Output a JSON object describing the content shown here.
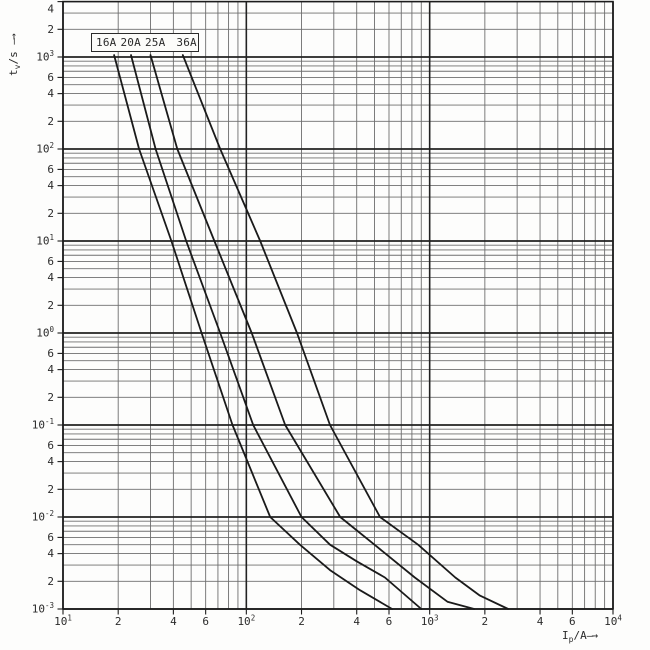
{
  "palette": {
    "background": "#fdfdfc",
    "grid_minor": "#6e6e6e",
    "grid_major": "#222222",
    "border": "#1c1c1c",
    "curve": "#1a1a1a",
    "text": "#2b2b2b"
  },
  "chart_data": {
    "type": "line",
    "x_scale": "log",
    "y_scale": "log",
    "xlim": [
      10,
      10000
    ],
    "ylim": [
      0.001,
      4000
    ],
    "grid": "log major+minor, on",
    "legend_position": "top-left framed box",
    "xlabel": "Ip/A",
    "ylabel": "tv/s",
    "xlabel_parts": {
      "symbol": "I",
      "sub": "p",
      "unit": "/A",
      "arrow": "—→"
    },
    "ylabel_parts": {
      "symbol": "t",
      "sub": "v",
      "unit": "/s",
      "arrow": "—→"
    },
    "x_ticks": [
      {
        "v": 10,
        "base": "10",
        "exp": "1"
      },
      {
        "v": 20,
        "text": "2"
      },
      {
        "v": 40,
        "text": "4"
      },
      {
        "v": 60,
        "text": "6"
      },
      {
        "v": 100,
        "base": "10",
        "exp": "2"
      },
      {
        "v": 200,
        "text": "2"
      },
      {
        "v": 400,
        "text": "4"
      },
      {
        "v": 600,
        "text": "6"
      },
      {
        "v": 1000,
        "base": "10",
        "exp": "3"
      },
      {
        "v": 2000,
        "text": "2"
      },
      {
        "v": 4000,
        "text": "4"
      },
      {
        "v": 6000,
        "text": "6"
      },
      {
        "v": 10000,
        "base": "10",
        "exp": "4"
      }
    ],
    "y_ticks": [
      {
        "v": 4000,
        "text": "4"
      },
      {
        "v": 2000,
        "text": "2"
      },
      {
        "v": 1000,
        "base": "10",
        "exp": "3"
      },
      {
        "v": 600,
        "text": "6"
      },
      {
        "v": 400,
        "text": "4"
      },
      {
        "v": 200,
        "text": "2"
      },
      {
        "v": 100,
        "base": "10",
        "exp": "2"
      },
      {
        "v": 60,
        "text": "6"
      },
      {
        "v": 40,
        "text": "4"
      },
      {
        "v": 20,
        "text": "2"
      },
      {
        "v": 10,
        "base": "10",
        "exp": "1"
      },
      {
        "v": 6,
        "text": "6"
      },
      {
        "v": 4,
        "text": "4"
      },
      {
        "v": 2,
        "text": "2"
      },
      {
        "v": 1,
        "base": "10",
        "exp": "0"
      },
      {
        "v": 0.6,
        "text": "6"
      },
      {
        "v": 0.4,
        "text": "4"
      },
      {
        "v": 0.2,
        "text": "2"
      },
      {
        "v": 0.1,
        "base": "10",
        "exp": "-1"
      },
      {
        "v": 0.06,
        "text": "6"
      },
      {
        "v": 0.04,
        "text": "4"
      },
      {
        "v": 0.02,
        "text": "2"
      },
      {
        "v": 0.01,
        "base": "10",
        "exp": "-2"
      },
      {
        "v": 0.006,
        "text": "6"
      },
      {
        "v": 0.004,
        "text": "4"
      },
      {
        "v": 0.002,
        "text": "2"
      },
      {
        "v": 0.001,
        "base": "10",
        "exp": "-3"
      }
    ],
    "series": [
      {
        "name": "16A",
        "points": [
          [
            19,
            1050
          ],
          [
            26,
            100
          ],
          [
            39,
            10
          ],
          [
            57,
            1
          ],
          [
            84,
            0.1
          ],
          [
            135,
            0.01
          ],
          [
            196,
            0.005
          ],
          [
            286,
            0.00265
          ],
          [
            417,
            0.0016
          ],
          [
            624,
            0.001
          ]
        ]
      },
      {
        "name": "20A",
        "points": [
          [
            23.5,
            1050
          ],
          [
            32,
            100
          ],
          [
            47,
            10
          ],
          [
            72,
            1
          ],
          [
            109,
            0.1
          ],
          [
            200,
            0.01
          ],
          [
            286,
            0.005
          ],
          [
            400,
            0.0033
          ],
          [
            570,
            0.0022
          ],
          [
            900,
            0.001
          ]
        ]
      },
      {
        "name": "25A",
        "points": [
          [
            30,
            1050
          ],
          [
            42,
            100
          ],
          [
            67,
            10
          ],
          [
            107,
            1
          ],
          [
            163,
            0.1
          ],
          [
            325,
            0.01
          ],
          [
            500,
            0.005
          ],
          [
            830,
            0.0022
          ],
          [
            1250,
            0.0012
          ],
          [
            1750,
            0.001
          ]
        ]
      },
      {
        "name": "36A",
        "points": [
          [
            45,
            1050
          ],
          [
            72,
            100
          ],
          [
            119,
            10
          ],
          [
            189,
            1
          ],
          [
            286,
            0.1
          ],
          [
            536,
            0.01
          ],
          [
            865,
            0.005
          ],
          [
            1380,
            0.0022
          ],
          [
            1880,
            0.0014
          ],
          [
            2680,
            0.001
          ]
        ]
      }
    ]
  }
}
